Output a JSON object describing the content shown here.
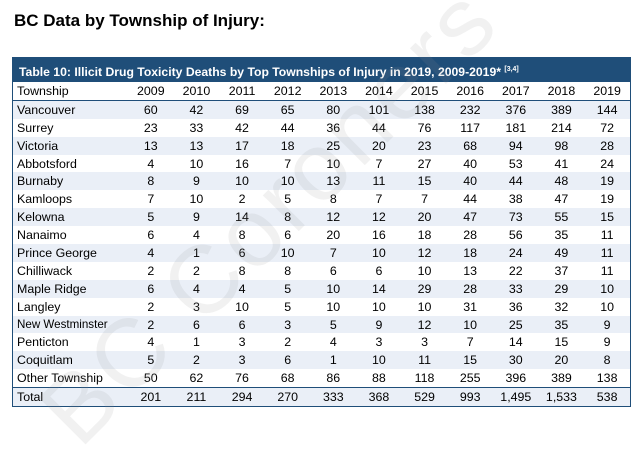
{
  "heading": "BC Data by Township of Injury:",
  "table": {
    "title": "Table 10: Illicit Drug Toxicity Deaths by Top Townships of Injury in 2019, 2009-2019*",
    "title_refs": "[3,4]",
    "header": [
      "Township",
      "2009",
      "2010",
      "2011",
      "2012",
      "2013",
      "2014",
      "2015",
      "2016",
      "2017",
      "2018",
      "2019"
    ],
    "rows": [
      {
        "name": "Vancouver",
        "values": [
          "60",
          "42",
          "69",
          "65",
          "80",
          "101",
          "138",
          "232",
          "376",
          "389",
          "144"
        ]
      },
      {
        "name": "Surrey",
        "values": [
          "23",
          "33",
          "42",
          "44",
          "36",
          "44",
          "76",
          "117",
          "181",
          "214",
          "72"
        ]
      },
      {
        "name": "Victoria",
        "values": [
          "13",
          "13",
          "17",
          "18",
          "25",
          "20",
          "23",
          "68",
          "94",
          "98",
          "28"
        ]
      },
      {
        "name": "Abbotsford",
        "values": [
          "4",
          "10",
          "16",
          "7",
          "10",
          "7",
          "27",
          "40",
          "53",
          "41",
          "24"
        ]
      },
      {
        "name": "Burnaby",
        "values": [
          "8",
          "9",
          "10",
          "10",
          "13",
          "11",
          "15",
          "40",
          "44",
          "48",
          "19"
        ]
      },
      {
        "name": "Kamloops",
        "values": [
          "7",
          "10",
          "2",
          "5",
          "8",
          "7",
          "7",
          "44",
          "38",
          "47",
          "19"
        ]
      },
      {
        "name": "Kelowna",
        "values": [
          "5",
          "9",
          "14",
          "8",
          "12",
          "12",
          "20",
          "47",
          "73",
          "55",
          "15"
        ]
      },
      {
        "name": "Nanaimo",
        "values": [
          "6",
          "4",
          "8",
          "6",
          "20",
          "16",
          "18",
          "28",
          "56",
          "35",
          "11"
        ]
      },
      {
        "name": "Prince George",
        "values": [
          "4",
          "1",
          "6",
          "10",
          "7",
          "10",
          "12",
          "18",
          "24",
          "49",
          "11"
        ]
      },
      {
        "name": "Chilliwack",
        "values": [
          "2",
          "2",
          "8",
          "8",
          "6",
          "6",
          "10",
          "13",
          "22",
          "37",
          "11"
        ]
      },
      {
        "name": "Maple Ridge",
        "values": [
          "6",
          "4",
          "4",
          "5",
          "10",
          "14",
          "29",
          "28",
          "33",
          "29",
          "10"
        ]
      },
      {
        "name": "Langley",
        "values": [
          "2",
          "3",
          "10",
          "5",
          "10",
          "10",
          "10",
          "31",
          "36",
          "32",
          "10"
        ]
      },
      {
        "name": "New Westminster",
        "values": [
          "2",
          "6",
          "6",
          "3",
          "5",
          "9",
          "12",
          "10",
          "25",
          "35",
          "9"
        ]
      },
      {
        "name": "Penticton",
        "values": [
          "4",
          "1",
          "3",
          "2",
          "4",
          "3",
          "3",
          "7",
          "14",
          "15",
          "9"
        ]
      },
      {
        "name": "Coquitlam",
        "values": [
          "5",
          "2",
          "3",
          "6",
          "1",
          "10",
          "11",
          "15",
          "30",
          "20",
          "8"
        ]
      },
      {
        "name": "Other Township",
        "values": [
          "50",
          "62",
          "76",
          "68",
          "86",
          "88",
          "118",
          "255",
          "396",
          "389",
          "138"
        ]
      }
    ],
    "total": {
      "name": "Total",
      "values": [
        "201",
        "211",
        "294",
        "270",
        "333",
        "368",
        "529",
        "993",
        "1,495",
        "1,533",
        "538"
      ]
    }
  }
}
